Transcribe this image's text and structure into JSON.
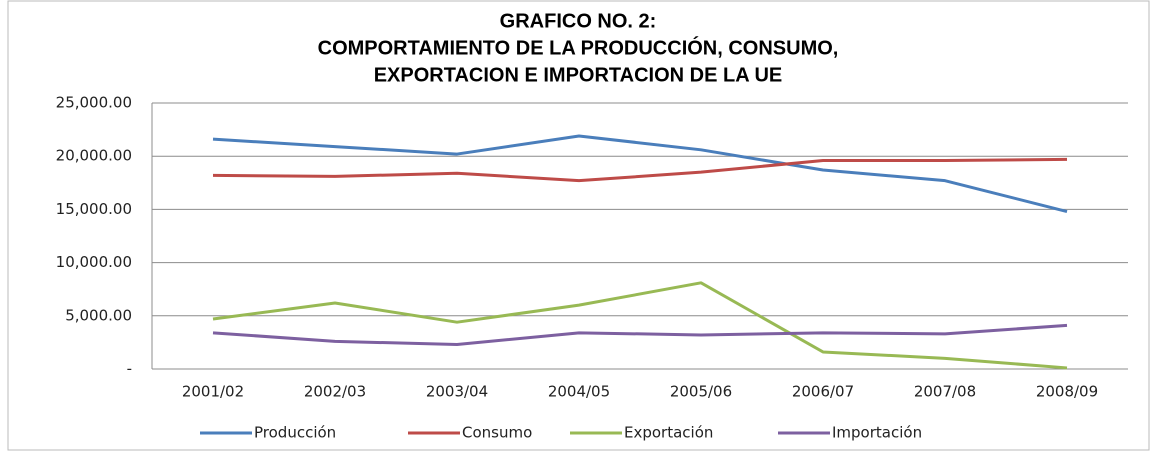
{
  "chart_data": {
    "type": "line",
    "title": [
      "GRAFICO NO. 2:",
      "COMPORTAMIENTO DE LA PRODUCCIÓN, CONSUMO,",
      "EXPORTACION E IMPORTACION DE LA UE"
    ],
    "categories": [
      "2001/02",
      "2002/03",
      "2003/04",
      "2004/05",
      "2005/06",
      "2006/07",
      "2007/08",
      "2008/09"
    ],
    "series": [
      {
        "name": "Producción",
        "color": "#4a7ebb",
        "values": [
          21600,
          20900,
          20200,
          21900,
          20600,
          18700,
          17700,
          14800
        ]
      },
      {
        "name": "Consumo",
        "color": "#be4b48",
        "values": [
          18200,
          18100,
          18400,
          17700,
          18500,
          19600,
          19600,
          19700
        ]
      },
      {
        "name": "Exportación",
        "color": "#98b954",
        "values": [
          4700,
          6200,
          4400,
          6000,
          8100,
          1600,
          1000,
          100
        ]
      },
      {
        "name": "Importación",
        "color": "#7d60a0",
        "values": [
          3400,
          2600,
          2300,
          3400,
          3200,
          3400,
          3300,
          4100
        ]
      }
    ],
    "ylim": [
      0,
      25000
    ],
    "yticks": [
      {
        "value": 0,
        "label": "-"
      },
      {
        "value": 5000,
        "label": "5,000.00"
      },
      {
        "value": 10000,
        "label": "10,000.00"
      },
      {
        "value": 15000,
        "label": "15,000.00"
      },
      {
        "value": 20000,
        "label": "20,000.00"
      },
      {
        "value": 25000,
        "label": "25,000.00"
      }
    ],
    "grid": true,
    "legend": "bottom"
  }
}
